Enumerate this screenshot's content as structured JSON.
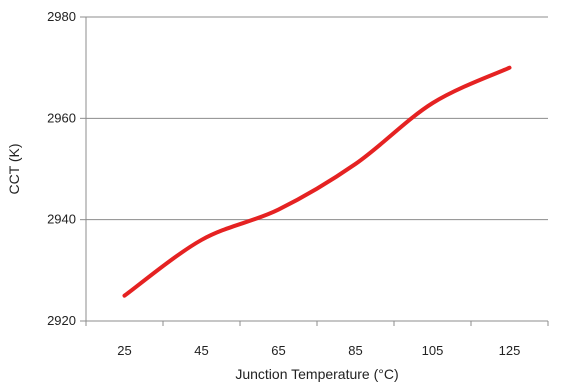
{
  "chart_data": {
    "type": "line",
    "title": "",
    "xlabel": "Junction Temperature (°C)",
    "ylabel": "CCT (K)",
    "x": [
      25,
      45,
      65,
      85,
      105,
      125
    ],
    "x_tick_labels": [
      "25",
      "45",
      "65",
      "85",
      "105",
      "125"
    ],
    "y_ticks": [
      2920,
      2940,
      2960,
      2980
    ],
    "y_tick_labels": [
      "2920",
      "2940",
      "2960",
      "2980"
    ],
    "ylim": [
      2920,
      2980
    ],
    "grid": "horizontal",
    "legend": "none",
    "series": [
      {
        "values": [
          2925,
          2936,
          2942,
          2951,
          2963,
          2970
        ],
        "color": "#e52222"
      }
    ],
    "colors": {
      "grid": "#8c8c8c",
      "axis": "#8c8c8c",
      "line": "#e52222"
    }
  }
}
